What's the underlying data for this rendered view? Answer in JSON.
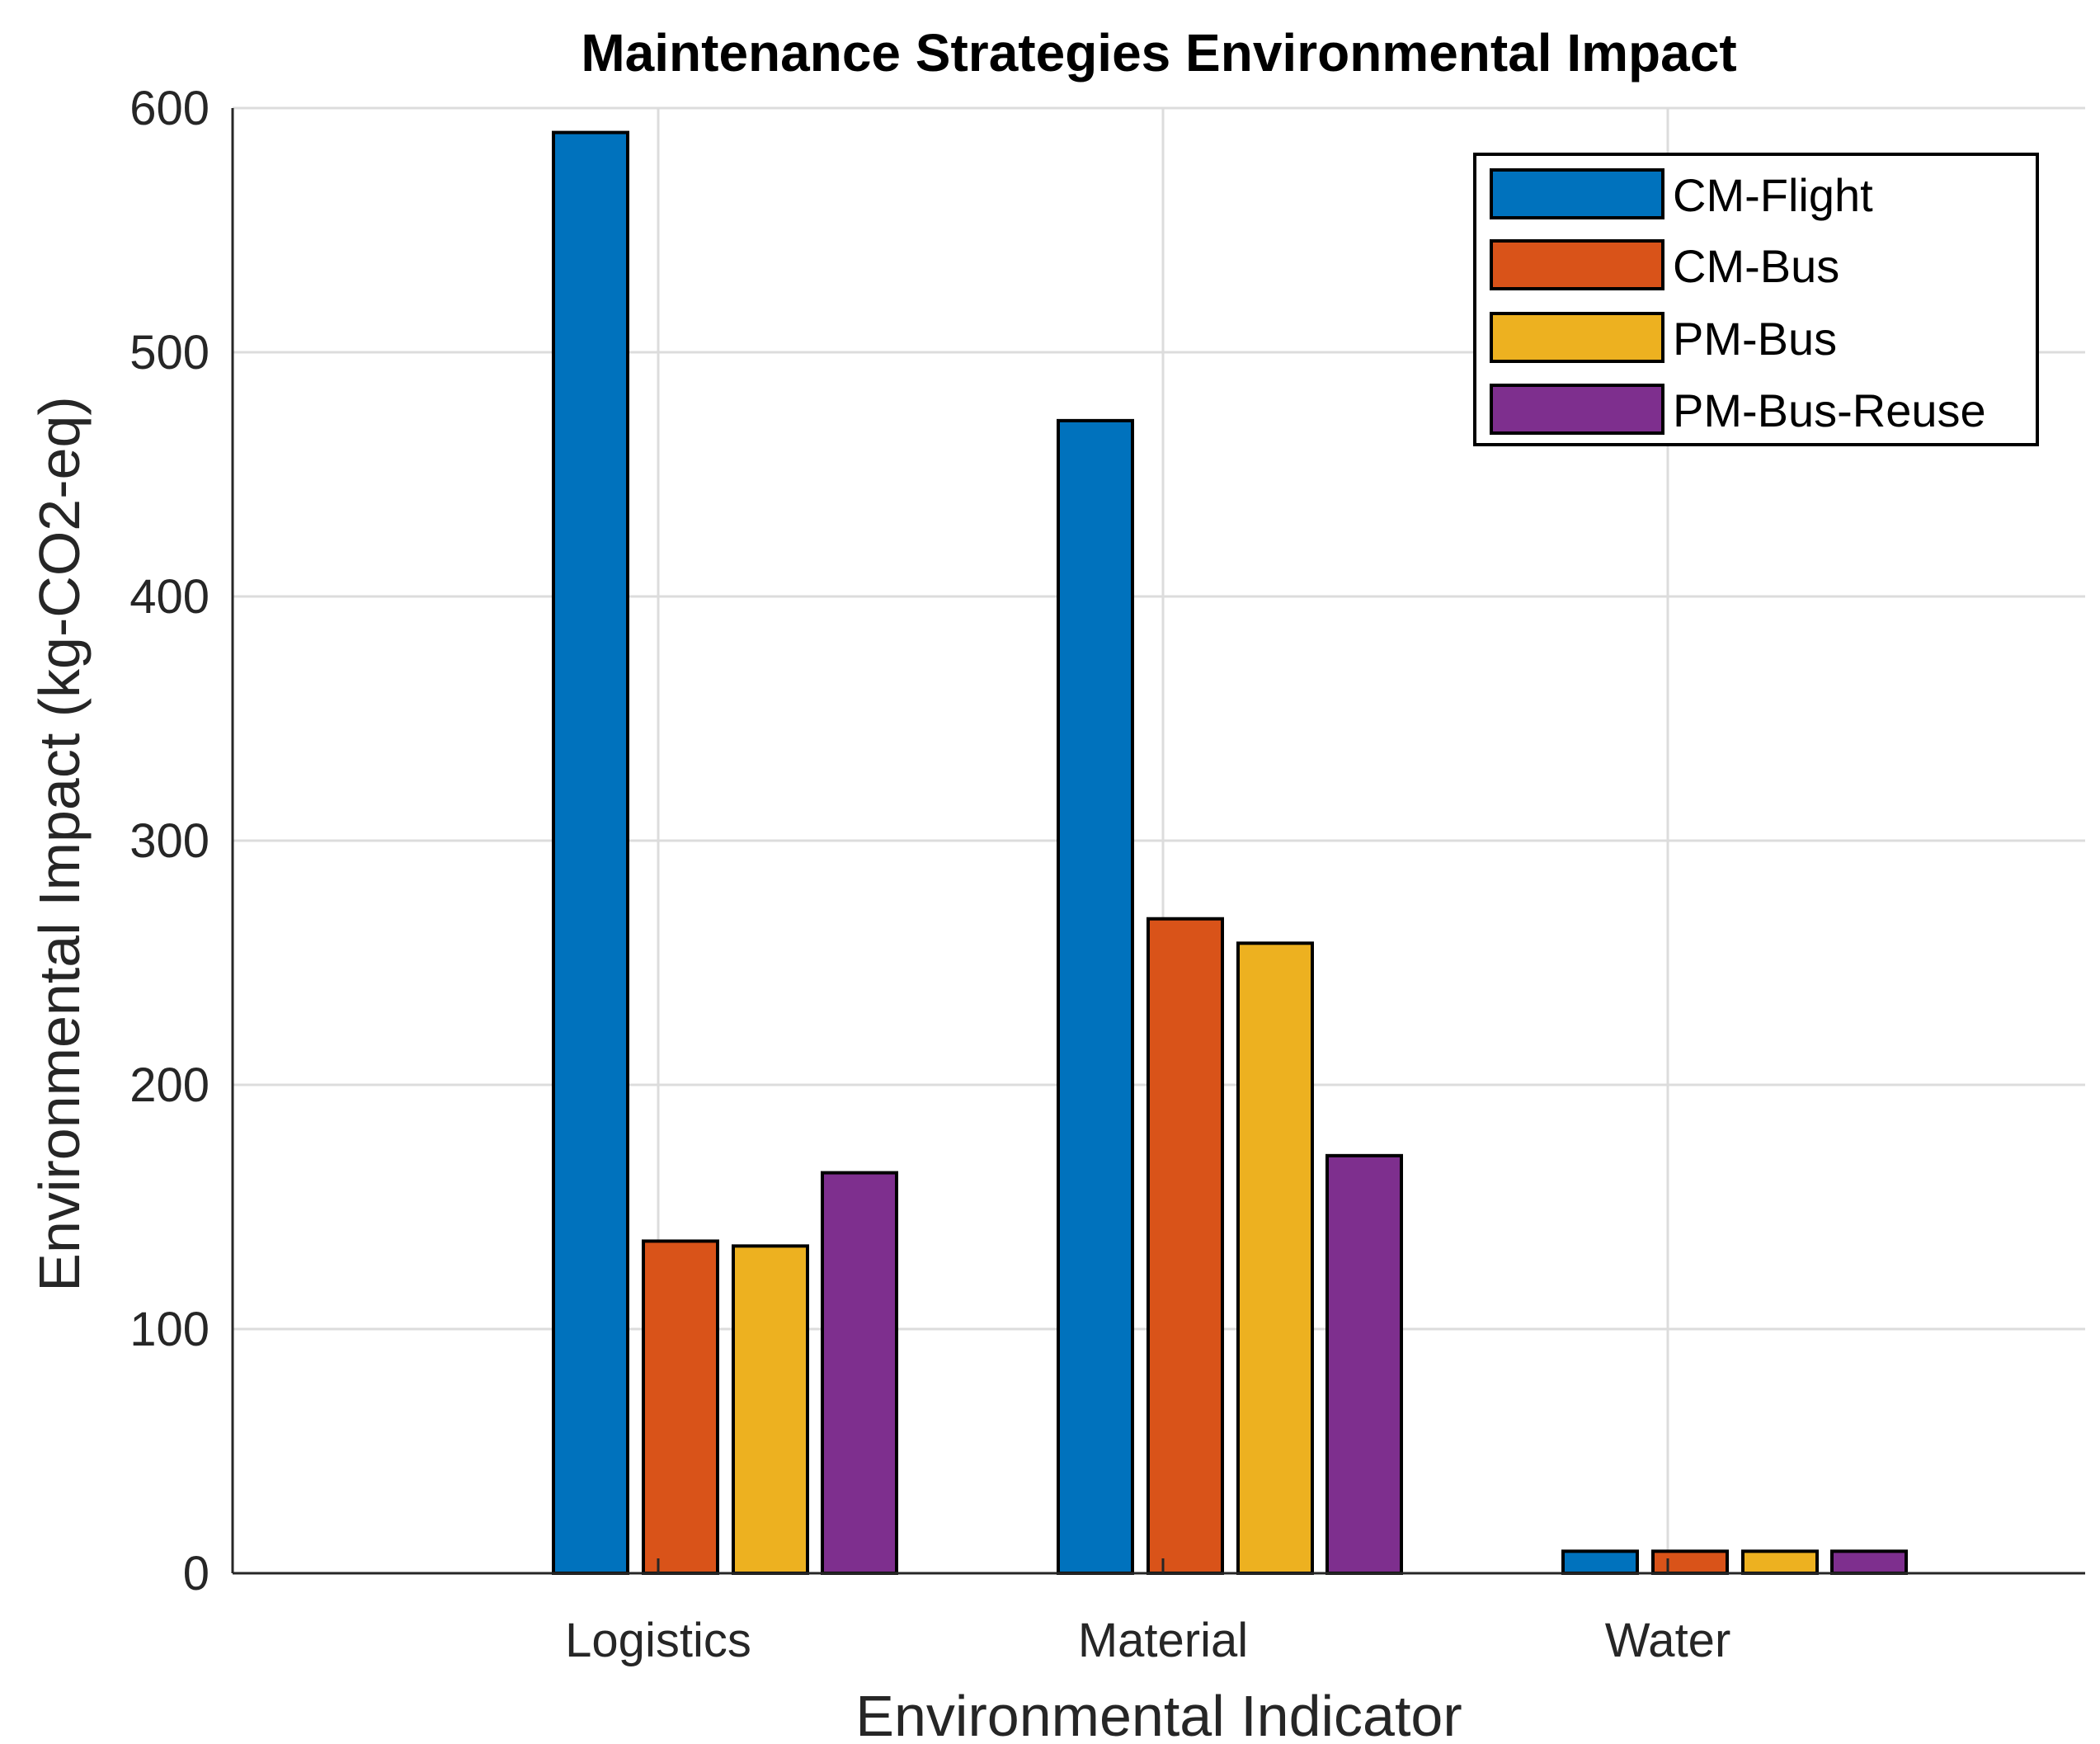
{
  "chart_data": {
    "type": "bar",
    "title": "Maintenance Strategies Environmental Impact",
    "xlabel": "Environmental Indicator",
    "ylabel": "Environmental Impact (kg-CO2-eq)",
    "categories": [
      "Logistics",
      "Material",
      "Water"
    ],
    "ylim": [
      0,
      600
    ],
    "yticks": [
      0,
      100,
      200,
      300,
      400,
      500,
      600
    ],
    "grid": true,
    "legend_position": "top-right",
    "series": [
      {
        "name": "CM-Flight",
        "color": "#0072BD",
        "values": [
          590,
          472,
          9
        ]
      },
      {
        "name": "CM-Bus",
        "color": "#D95319",
        "values": [
          136,
          268,
          9
        ]
      },
      {
        "name": "PM-Bus",
        "color": "#EDB120",
        "values": [
          134,
          258,
          9
        ]
      },
      {
        "name": "PM-Bus-Reuse",
        "color": "#7E2F8E",
        "values": [
          164,
          171,
          9
        ]
      }
    ]
  }
}
